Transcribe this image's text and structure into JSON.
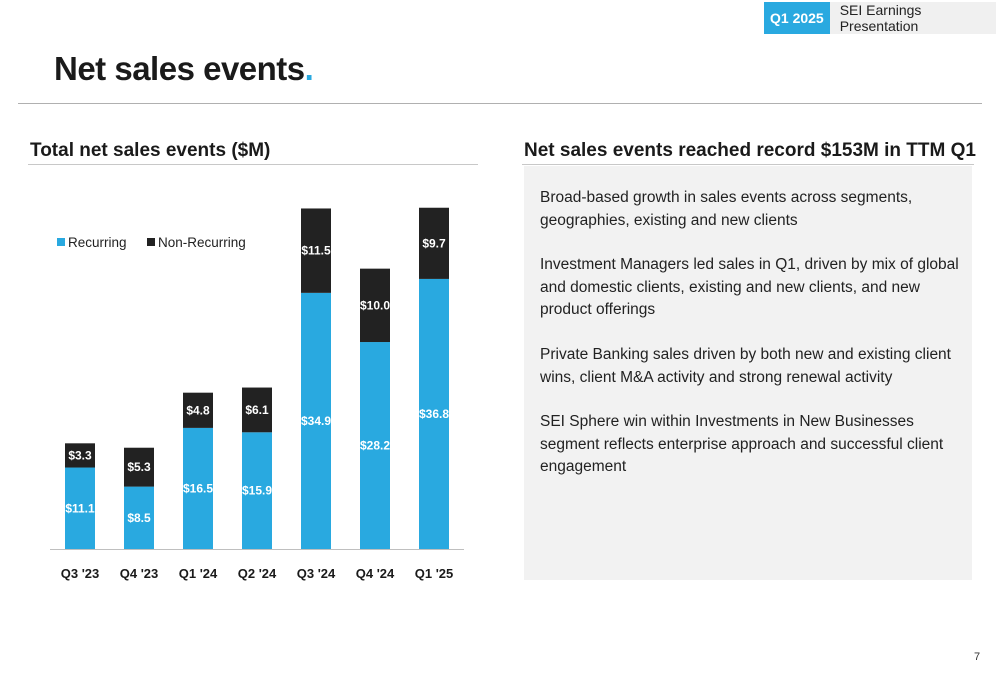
{
  "header": {
    "badge_period": "Q1 2025",
    "badge_text": "SEI Earnings Presentation"
  },
  "page": {
    "title": "Net sales events",
    "title_dot": ".",
    "number": "7"
  },
  "left_section": {
    "title": "Total net sales events ($M)"
  },
  "right_section": {
    "title": "Net sales events reached record $153M in TTM Q1",
    "bullets": [
      "Broad-based growth in sales events across segments, geographies, existing and new clients",
      "Investment Managers led sales in Q1, driven by mix of global and domestic clients, existing and new clients, and new product offerings",
      "Private Banking sales driven by both new and existing client wins, client M&A activity and strong renewal activity",
      "SEI Sphere win within Investments in New Businesses segment reflects enterprise approach and successful client engagement"
    ]
  },
  "colors": {
    "accent": "#29a9e0",
    "recurring": "#29a9e0",
    "non_recurring": "#222222"
  },
  "chart_data": {
    "type": "bar",
    "stacked": true,
    "title": "Total net sales events ($M)",
    "categories": [
      "Q3 '23",
      "Q4 '23",
      "Q1 '24",
      "Q2 '24",
      "Q3 '24",
      "Q4 '24",
      "Q1 '25"
    ],
    "series": [
      {
        "name": "Recurring",
        "values": [
          11.1,
          8.5,
          16.5,
          15.9,
          34.9,
          28.2,
          36.8
        ],
        "labels": [
          "$11.1",
          "$8.5",
          "$16.5",
          "$15.9",
          "$34.9",
          "$28.2",
          "$36.8"
        ]
      },
      {
        "name": "Non-Recurring",
        "values": [
          3.3,
          5.3,
          4.8,
          6.1,
          11.5,
          10.0,
          9.7
        ],
        "labels": [
          "$3.3",
          "$5.3",
          "$4.8",
          "$6.1",
          "$11.5",
          "$10.0",
          "$9.7"
        ]
      }
    ],
    "legend": "top-left",
    "grid": false,
    "ylim": [
      0,
      46.6
    ]
  }
}
